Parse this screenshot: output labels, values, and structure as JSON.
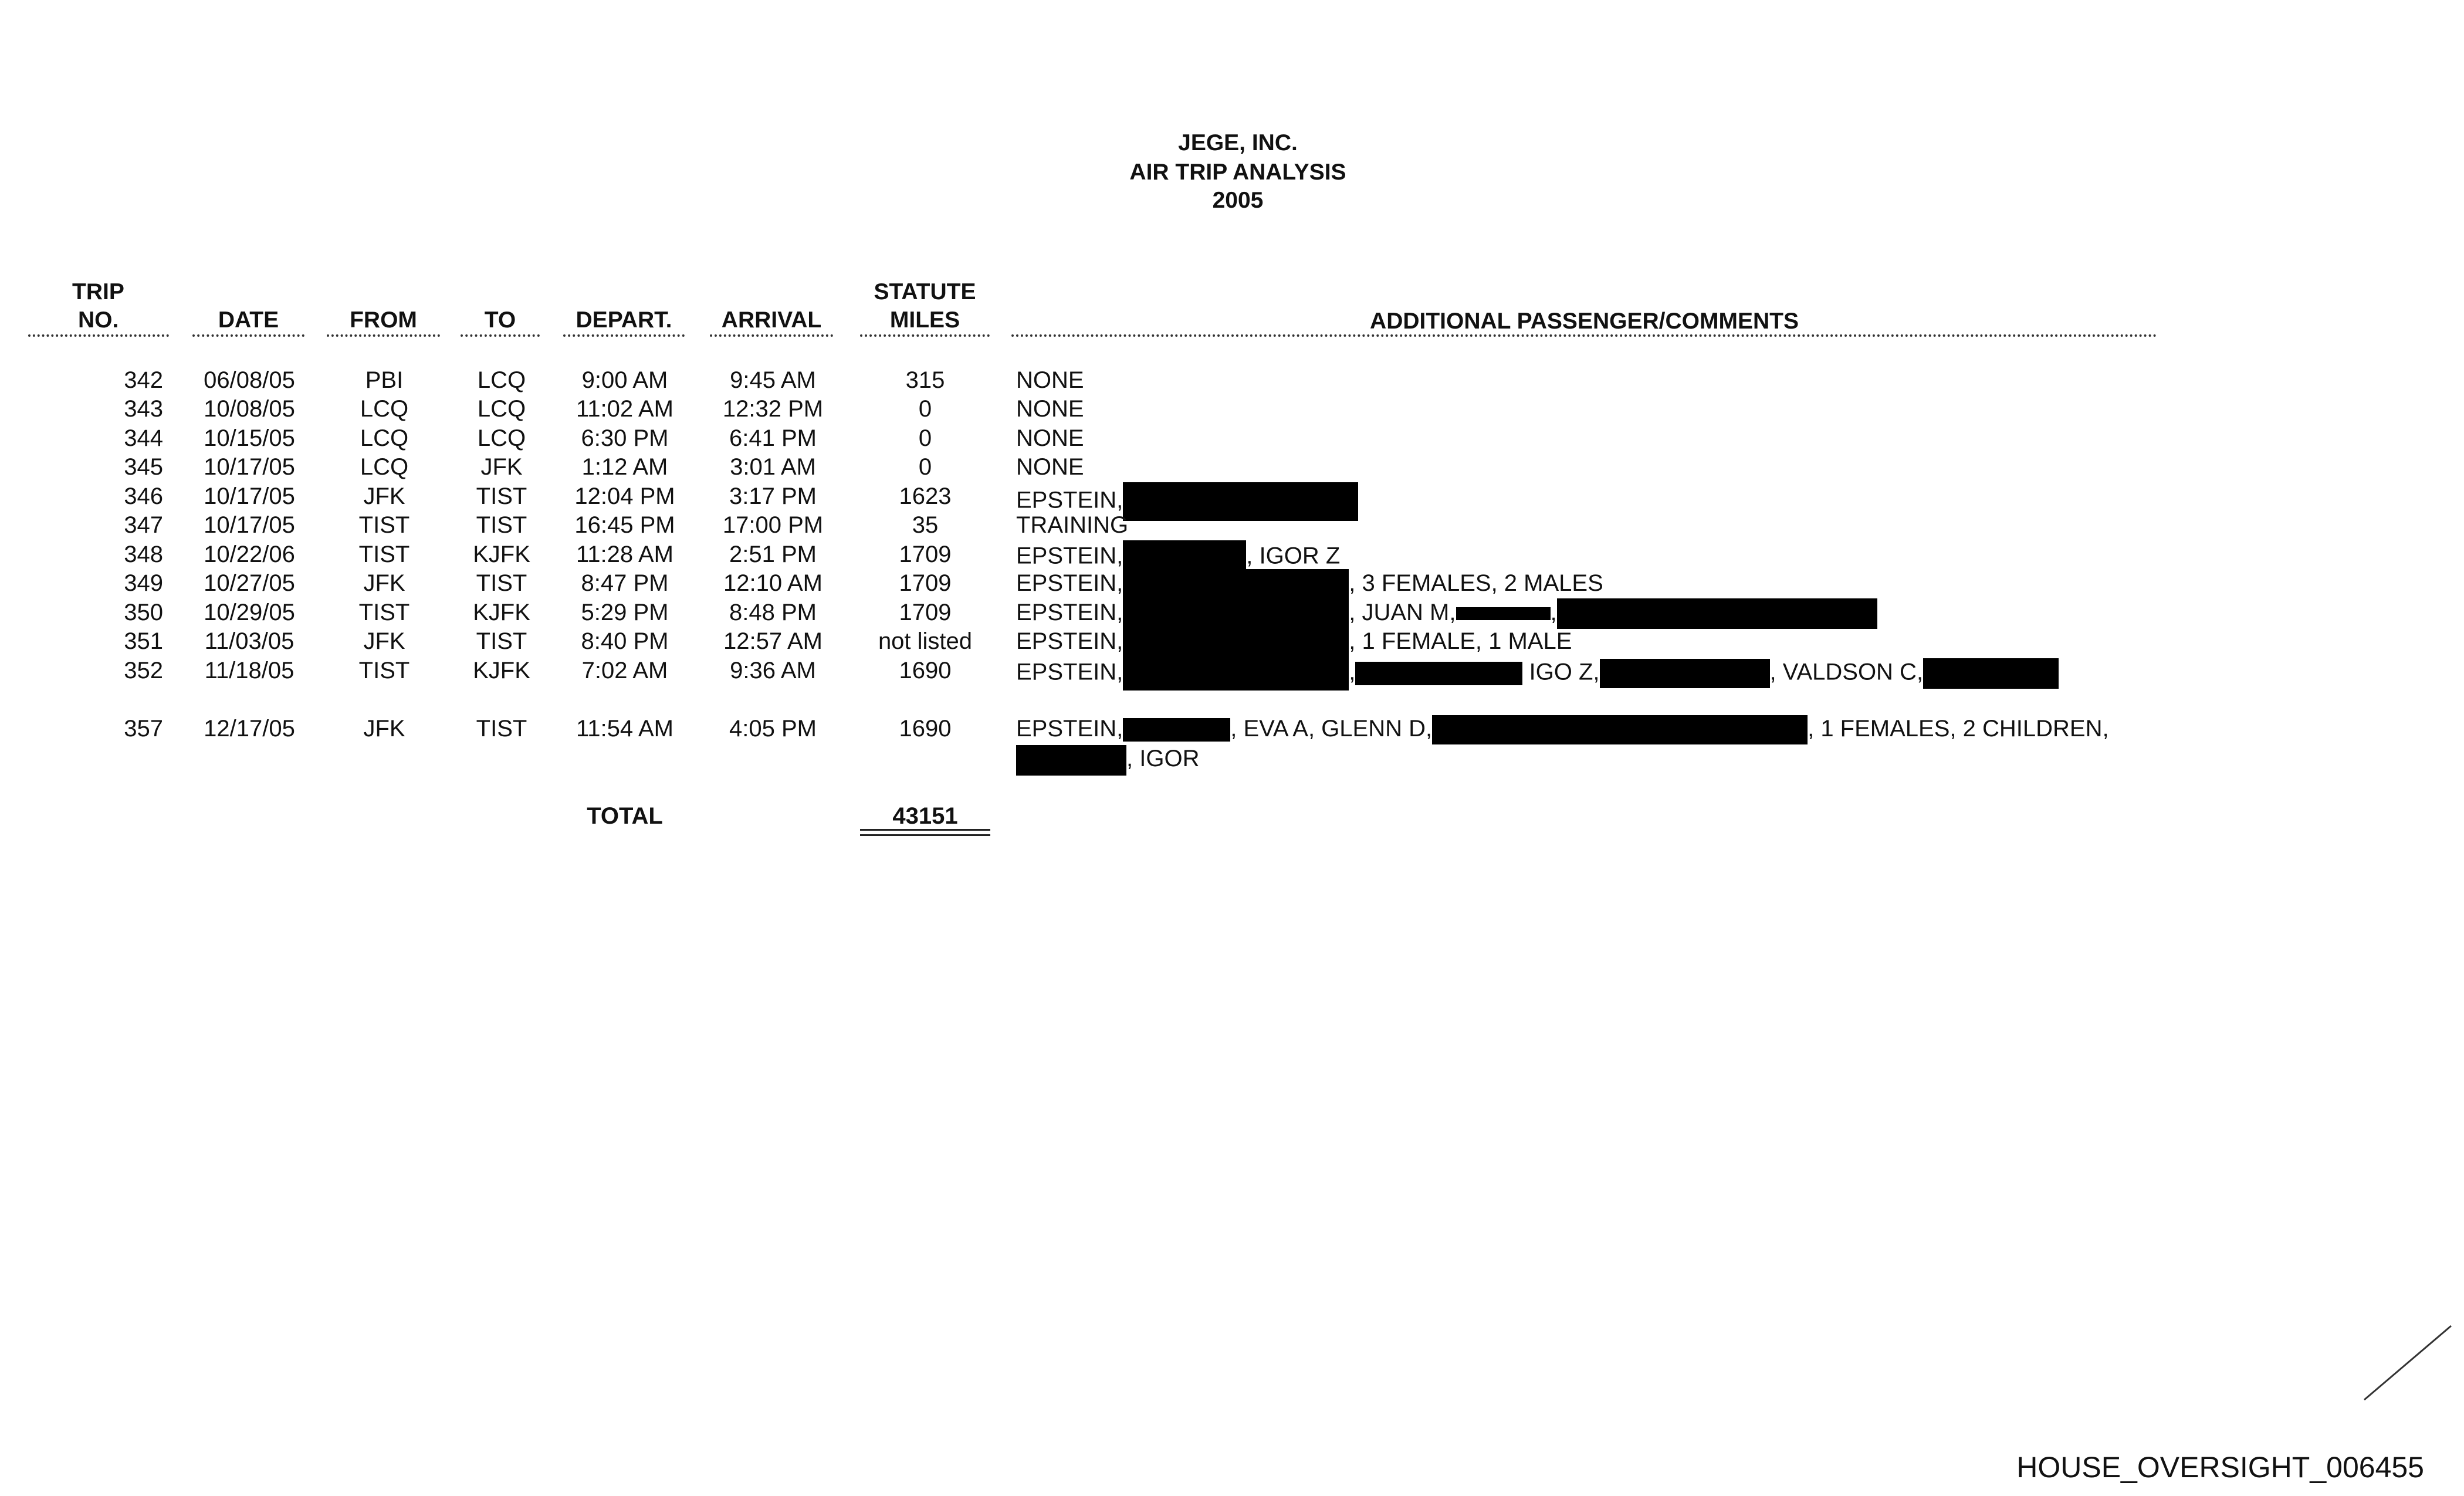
{
  "header": {
    "company": "JEGE, INC.",
    "report": "AIR TRIP ANALYSIS",
    "year": "2005"
  },
  "columns": {
    "trip_line1": "TRIP",
    "trip_line2": "NO.",
    "date": "DATE",
    "from": "FROM",
    "to": "TO",
    "depart": "DEPART.",
    "arrival": "ARRIVAL",
    "miles_line1": "STATUTE",
    "miles_line2": "MILES",
    "comments": "ADDITIONAL PASSENGER/COMMENTS"
  },
  "rows": [
    {
      "trip": "342",
      "date": "06/08/05",
      "from": "PBI",
      "to": "LCQ",
      "depart": "9:00 AM",
      "arrival": "9:45 AM",
      "miles": "315",
      "comments": [
        "NONE"
      ]
    },
    {
      "trip": "343",
      "date": "10/08/05",
      "from": "LCQ",
      "to": "LCQ",
      "depart": "11:02 AM",
      "arrival": "12:32 PM",
      "miles": "0",
      "comments": [
        "NONE"
      ]
    },
    {
      "trip": "344",
      "date": "10/15/05",
      "from": "LCQ",
      "to": "LCQ",
      "depart": "6:30 PM",
      "arrival": "6:41 PM",
      "miles": "0",
      "comments": [
        "NONE"
      ]
    },
    {
      "trip": "345",
      "date": "10/17/05",
      "from": "LCQ",
      "to": "JFK",
      "depart": "1:12 AM",
      "arrival": "3:01 AM",
      "miles": "0",
      "comments": [
        "NONE"
      ]
    },
    {
      "trip": "346",
      "date": "10/17/05",
      "from": "JFK",
      "to": "TIST",
      "depart": "12:04 PM",
      "arrival": "3:17 PM",
      "miles": "1623",
      "comments": [
        "EPSTEIN,"
      ]
    },
    {
      "trip": "347",
      "date": "10/17/05",
      "from": "TIST",
      "to": "TIST",
      "depart": "16:45 PM",
      "arrival": "17:00 PM",
      "miles": "35",
      "comments": [
        "TRAINING"
      ]
    },
    {
      "trip": "348",
      "date": "10/22/06",
      "from": "TIST",
      "to": "KJFK",
      "depart": "11:28 AM",
      "arrival": "2:51 PM",
      "miles": "1709",
      "comments": [
        "EPSTEIN,",
        ", IGOR Z"
      ]
    },
    {
      "trip": "349",
      "date": "10/27/05",
      "from": "JFK",
      "to": "TIST",
      "depart": "8:47 PM",
      "arrival": "12:10 AM",
      "miles": "1709",
      "comments": [
        "EPSTEIN,",
        ", 3 FEMALES, 2 MALES"
      ]
    },
    {
      "trip": "350",
      "date": "10/29/05",
      "from": "TIST",
      "to": "KJFK",
      "depart": "5:29 PM",
      "arrival": "8:48 PM",
      "miles": "1709",
      "comments": [
        "EPSTEIN,",
        ", JUAN M,",
        ","
      ]
    },
    {
      "trip": "351",
      "date": "11/03/05",
      "from": "JFK",
      "to": "TIST",
      "depart": "8:40 PM",
      "arrival": "12:57 AM",
      "miles": "not listed",
      "comments": [
        "EPSTEIN,",
        ", 1 FEMALE, 1 MALE"
      ]
    },
    {
      "trip": "352",
      "date": "11/18/05",
      "from": "TIST",
      "to": "KJFK",
      "depart": "7:02 AM",
      "arrival": "9:36 AM",
      "miles": "1690",
      "comments": [
        "EPSTEIN,",
        ",",
        "IGO Z,",
        ", VALDSON C,"
      ]
    },
    {
      "trip": "357",
      "date": "12/17/05",
      "from": "JFK",
      "to": "TIST",
      "depart": "11:54 AM",
      "arrival": "4:05 PM",
      "miles": "1690",
      "comments": [
        "EPSTEIN,",
        ", EVA A, GLENN D,",
        ", 1 FEMALES, 2 CHILDREN,",
        ", IGOR"
      ]
    }
  ],
  "total": {
    "label": "TOTAL",
    "miles": "43151"
  },
  "footer": {
    "bates": "HOUSE_OVERSIGHT_006455"
  }
}
